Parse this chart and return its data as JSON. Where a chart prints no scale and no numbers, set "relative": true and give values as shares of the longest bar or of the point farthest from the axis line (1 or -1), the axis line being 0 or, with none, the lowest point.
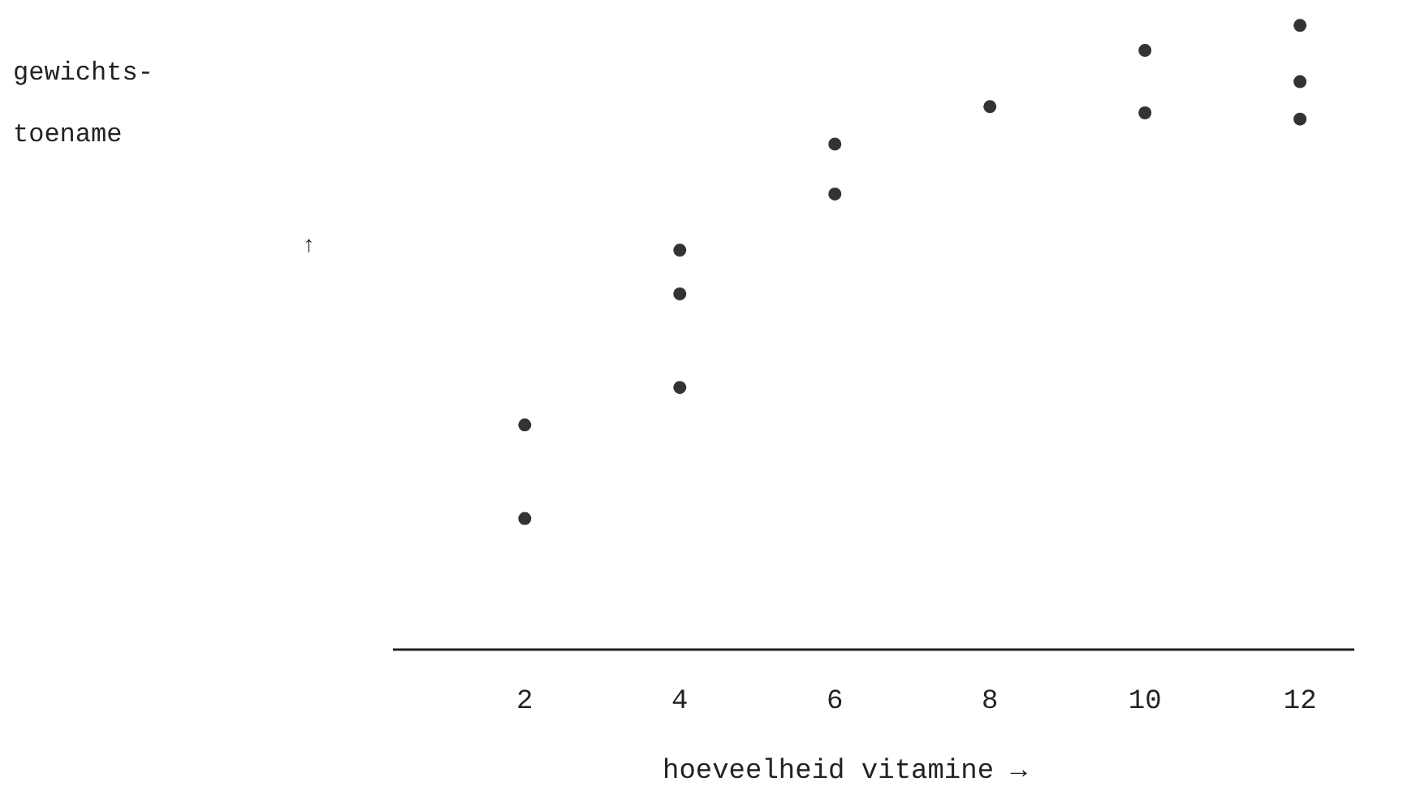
{
  "chart_data": {
    "type": "scatter",
    "xlabel": "hoeveelheid vitamine →",
    "ylabel": "gewichts-\ntoename\n↑",
    "relative": true,
    "marker": "circle",
    "grid": false,
    "legend": false,
    "x": [
      2,
      2,
      4,
      4,
      4,
      6,
      6,
      8,
      10,
      10,
      12,
      12,
      12
    ],
    "xlim": [
      0.3,
      12.7
    ],
    "xticks": [
      2,
      4,
      6,
      8,
      10,
      12
    ],
    "series": [
      {
        "color": "#333333",
        "values": [
          0.36,
          0.21,
          0.64,
          0.57,
          0.42,
          0.81,
          0.73,
          0.87,
          0.96,
          0.86,
          1,
          0.91,
          0.85
        ]
      }
    ]
  }
}
